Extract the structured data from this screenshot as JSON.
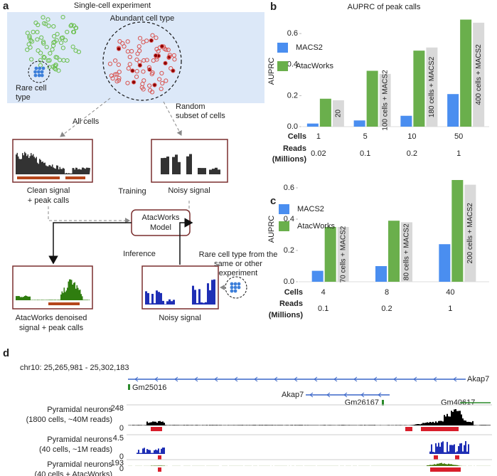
{
  "panel_a": {
    "letter": "a",
    "title": "Single-cell experiment",
    "abundant": "Abundant cell type",
    "rare": [
      "Rare cell",
      "type"
    ],
    "all_cells": "All cells",
    "random_subset": [
      "Random",
      "subset of cells"
    ],
    "clean": [
      "Clean signal",
      "+ peak calls"
    ],
    "training": "Training",
    "noisy_top": "Noisy signal",
    "model": [
      "AtacWorks",
      "Model"
    ],
    "inference": "Inference",
    "rare_input": [
      "Rare cell type from the",
      "same or other",
      "experiment"
    ],
    "denoised": [
      "AtacWorks denoised",
      "signal + peak calls"
    ],
    "noisy_bottom": "Noisy signal"
  },
  "chart_data": [
    {
      "type": "bar",
      "letter": "b",
      "title": "AUPRC of peak calls",
      "y_label": "AUPRC",
      "row_labels": [
        "Cells",
        "Reads",
        "(Millions)"
      ],
      "categories": [
        "1",
        "5",
        "10",
        "50"
      ],
      "reads": [
        "0.02",
        "0.1",
        "0.2",
        "1"
      ],
      "series": [
        {
          "name": "MACS2",
          "color": "#4a8ef0",
          "values": [
            0.02,
            0.04,
            0.07,
            0.21
          ]
        },
        {
          "name": "AtacWorks",
          "color": "#6aaf4c",
          "values": [
            0.18,
            0.36,
            0.49,
            0.69
          ]
        },
        {
          "color": "#d9d9d9",
          "values": [
            0.17,
            0.34,
            0.51,
            0.67
          ],
          "bar_labels": [
            "20",
            "100 cells + MACS2",
            "180 cells + MACS2",
            "400 cells + MACS2"
          ]
        }
      ],
      "ylim": [
        0,
        0.72
      ],
      "yticks": [
        {
          "value": 0,
          "label": "0.0"
        },
        {
          "value": 0.2,
          "label": "0.2"
        },
        {
          "value": 0.4,
          "label": "0.4"
        },
        {
          "value": 0.6,
          "label": "0.6"
        }
      ],
      "legend": "upper left"
    },
    {
      "type": "bar",
      "letter": "c",
      "y_label": "AUPRC",
      "row_labels": [
        "Cells",
        "Reads",
        "(Millions)"
      ],
      "categories": [
        "4",
        "8",
        "40"
      ],
      "reads": [
        "0.1",
        "0.2",
        "1"
      ],
      "series": [
        {
          "name": "MACS2",
          "color": "#4a8ef0",
          "values": [
            0.07,
            0.1,
            0.24
          ]
        },
        {
          "name": "AtacWorks",
          "color": "#6aaf4c",
          "values": [
            0.35,
            0.39,
            0.65
          ]
        },
        {
          "color": "#d9d9d9",
          "values": [
            0.35,
            0.38,
            0.62
          ],
          "bar_labels": [
            "70 cells + MACS2",
            "80 cells + MACS2",
            "200 cells + MACS2"
          ]
        }
      ],
      "ylim": [
        0,
        0.7
      ],
      "yticks": [
        {
          "value": 0,
          "label": "0.0"
        },
        {
          "value": 0.2,
          "label": "0.2"
        },
        {
          "value": 0.4,
          "label": "0.4"
        },
        {
          "value": 0.6,
          "label": "0.6"
        }
      ],
      "legend": "upper left"
    }
  ],
  "panel_d": {
    "letter": "d",
    "region": "chr10: 25,265,981 - 25,302,183",
    "genes": [
      "Akap7",
      "Gm25016",
      "Akap7",
      "Gm26167",
      "Gm40617"
    ],
    "tracks": [
      {
        "label": [
          "Pyramidal neurons",
          "(1800 cells, ~40M reads)"
        ],
        "yticks": [
          0,
          248
        ],
        "color": "#000000"
      },
      {
        "label": [
          "Pyramidal neurons",
          "(40 cells, ~1M reads)"
        ],
        "yticks": [
          0,
          4.5
        ],
        "color": "#1f2fb5"
      },
      {
        "label": [
          "Pyramidal neurons",
          "(40 cells + AtacWorks)"
        ],
        "yticks": [
          0,
          193
        ],
        "color": "#4b7d10"
      }
    ]
  }
}
